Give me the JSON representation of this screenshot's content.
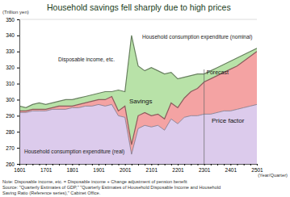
{
  "chart_data": {
    "type": "area",
    "title": "Household savings fell sharply due to high prices",
    "y_label": "(Trillion yen)",
    "x_label": "(Year/Quarter)",
    "categories": [
      "1601",
      null,
      null,
      null,
      "1701",
      null,
      null,
      null,
      "1801",
      null,
      null,
      null,
      "1901",
      null,
      null,
      null,
      "2001",
      null,
      null,
      null,
      "2101",
      null,
      null,
      null,
      "2201",
      null,
      null,
      null,
      "2301",
      null,
      null,
      null,
      "2401",
      null,
      null,
      null,
      "2501"
    ],
    "series": [
      {
        "name": "Disposable income, etc.",
        "type": "area",
        "color": "#b8e2a8",
        "values": [
          296,
          295,
          297,
          298,
          297,
          298,
          299,
          300,
          300,
          301,
          302,
          303,
          304,
          305,
          305,
          306,
          305,
          340,
          321,
          318,
          320,
          318,
          316,
          317,
          313,
          314,
          315,
          316,
          316,
          318,
          320,
          322,
          324,
          326,
          328,
          330,
          332
        ]
      },
      {
        "name": "Household consumption expenditure (nominal)",
        "type": "area",
        "color": "#f4a3a3",
        "values": [
          293,
          293,
          294,
          294,
          294,
          295,
          296,
          296,
          296,
          297,
          298,
          299,
          300,
          300,
          302,
          293,
          296,
          272,
          290,
          292,
          290,
          291,
          288,
          298,
          295,
          301,
          305,
          307,
          311,
          313,
          315,
          317,
          319,
          321,
          324,
          327,
          330
        ]
      },
      {
        "name": "Household consumption expenditure (real)",
        "type": "area",
        "color": "#dccbec",
        "values": [
          292,
          292,
          293,
          293,
          293,
          294,
          294,
          294,
          295,
          295,
          296,
          296,
          297,
          296,
          297,
          290,
          289,
          266,
          282,
          284,
          283,
          284,
          281,
          288,
          285,
          289,
          290,
          290,
          291,
          291,
          292,
          293,
          293,
          294,
          295,
          296,
          297
        ]
      }
    ],
    "annotations": [
      {
        "text": "Forecast",
        "x": "2301"
      },
      {
        "text": "Savings"
      },
      {
        "text": "Price factor"
      }
    ],
    "notes": [
      "Note: Disposable income, etc. = Disposable income + Change adjustment of pension benefit",
      "Source: \"Quarterly Estimates of GDP,\" \"Quarterly Estimates of Household Disposable Income and Household",
      "Saving Ratio (Reference series),\" Cabinet Office."
    ],
    "ylim": [
      260,
      350
    ],
    "yticks": [
      260,
      270,
      280,
      290,
      300,
      310,
      320,
      330,
      340,
      350
    ],
    "grid": false
  }
}
